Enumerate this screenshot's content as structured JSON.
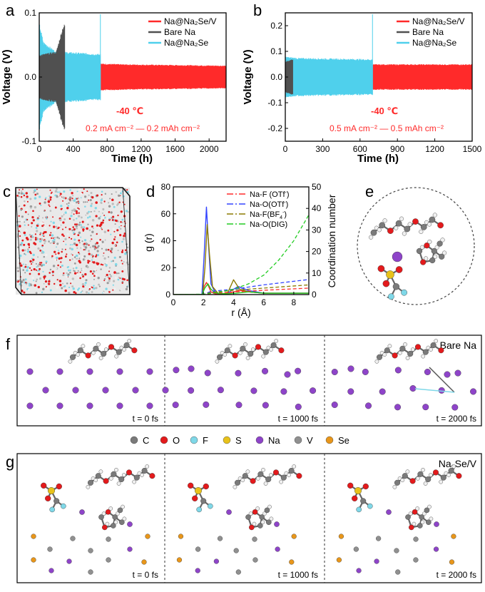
{
  "colors": {
    "red": "#ff2a2a",
    "black": "#505050",
    "cyan": "#4fd0ec",
    "blue": "#3344ff",
    "olive": "#8c7a00",
    "green": "#22cc22",
    "na": "#8e44c9",
    "o": "#e31a1c",
    "c": "#7a7a7a",
    "h": "#f0f0f0",
    "f": "#7fd8e8",
    "s": "#e8c21a",
    "v": "#909090",
    "se": "#e8961a"
  },
  "panels": {
    "a": {
      "letter": "a"
    },
    "b": {
      "letter": "b"
    },
    "c": {
      "letter": "c"
    },
    "d": {
      "letter": "d"
    },
    "e": {
      "letter": "e"
    },
    "f": {
      "letter": "f",
      "label": "Bare Na",
      "times": [
        "t = 0 fs",
        "t = 1000 fs",
        "t = 2000 fs"
      ]
    },
    "g": {
      "letter": "g",
      "label_main": "Na",
      "label_sub": "2",
      "label_tail": "Se/V",
      "times": [
        "t = 0 fs",
        "t = 1000 fs",
        "t = 2000 fs"
      ]
    }
  },
  "legend_atoms": [
    {
      "symbol": "C",
      "color": "#7a7a7a"
    },
    {
      "symbol": "O",
      "color": "#e31a1c"
    },
    {
      "symbol": "F",
      "color": "#7fd8e8"
    },
    {
      "symbol": "S",
      "color": "#e8c21a"
    },
    {
      "symbol": "Na",
      "color": "#8e44c9"
    },
    {
      "symbol": "V",
      "color": "#909090"
    },
    {
      "symbol": "Se",
      "color": "#e8961a"
    }
  ],
  "chart_data": [
    {
      "id": "a",
      "type": "line",
      "title": "",
      "xlabel": "Time (h)",
      "ylabel": "Voltage (V)",
      "xlim": [
        0,
        2200
      ],
      "ylim": [
        -0.1,
        0.1
      ],
      "xticks": [
        0,
        400,
        800,
        1200,
        1600,
        2000
      ],
      "yticks": [
        -0.1,
        0.0,
        0.1
      ],
      "ytick_labels": [
        "-0.1",
        "0.0",
        "0.1"
      ],
      "annotation_temp": "-40 ℃",
      "annotation_rate": "0.2 mA cm⁻² — 0.2 mAh cm⁻²",
      "series": [
        {
          "name": "Na@Na₂Se/V",
          "color": "#ff2a2a",
          "x_end": 2200,
          "envelope": [
            [
              0,
              0.025
            ],
            [
              500,
              0.022
            ],
            [
              1000,
              0.02
            ],
            [
              2200,
              0.018
            ]
          ]
        },
        {
          "name": "Bare Na",
          "color": "#505050",
          "x_end": 300,
          "envelope": [
            [
              0,
              0.035
            ],
            [
              200,
              0.04
            ],
            [
              280,
              0.08
            ],
            [
              300,
              0.083
            ]
          ]
        },
        {
          "name": "Na@Na₂Se",
          "color": "#4fd0ec",
          "x_end": 720,
          "envelope": [
            [
              0,
              0.085
            ],
            [
              50,
              0.055
            ],
            [
              200,
              0.04
            ],
            [
              500,
              0.038
            ],
            [
              720,
              0.036
            ]
          ]
        }
      ]
    },
    {
      "id": "b",
      "type": "line",
      "title": "",
      "xlabel": "Time (h)",
      "ylabel": "Voltage (V)",
      "xlim": [
        0,
        1500
      ],
      "ylim": [
        -0.25,
        0.25
      ],
      "xticks": [
        0,
        300,
        600,
        900,
        1200,
        1500
      ],
      "yticks": [
        -0.2,
        -0.1,
        0.0,
        0.1,
        0.2
      ],
      "ytick_labels": [
        "-0.2",
        "-0.1",
        "0.0",
        "0.1",
        "0.2"
      ],
      "annotation_temp": "-40 ℃",
      "annotation_rate": "0.5 mA cm⁻² — 0.5 mAh cm⁻²",
      "series": [
        {
          "name": "Na@Na₂Se/V",
          "color": "#ff2a2a",
          "x_end": 1500,
          "envelope": [
            [
              0,
              0.055
            ],
            [
              700,
              0.05
            ],
            [
              1500,
              0.05
            ]
          ]
        },
        {
          "name": "Bare Na",
          "color": "#505050",
          "x_end": 60,
          "envelope": [
            [
              0,
              0.06
            ],
            [
              60,
              0.07
            ]
          ]
        },
        {
          "name": "Na@Na₂Se",
          "color": "#4fd0ec",
          "x_end": 700,
          "envelope": [
            [
              0,
              0.08
            ],
            [
              100,
              0.075
            ],
            [
              700,
              0.07
            ]
          ]
        }
      ]
    },
    {
      "id": "d",
      "type": "line",
      "title": "",
      "xlabel": "r (Å)",
      "ylabel": "g (r)",
      "y2label": "Coordination number",
      "xlim": [
        0,
        9
      ],
      "ylim": [
        0,
        80
      ],
      "y2lim": [
        0,
        50
      ],
      "xticks": [
        0,
        2,
        4,
        6,
        8
      ],
      "yticks": [
        0,
        20,
        40,
        60,
        80
      ],
      "y2ticks": [
        0,
        10,
        20,
        30,
        40,
        50
      ],
      "legend": [
        {
          "main": "Na-F (OTf",
          "sup": "-",
          "tail": ")",
          "color": "#ff2a2a"
        },
        {
          "main": "Na-O(OTf",
          "sup": "-",
          "tail": ")",
          "color": "#3344ff"
        },
        {
          "main": "Na-F(BF",
          "sub": "4",
          "sup": "-",
          "tail": ")",
          "color": "#8c7a00"
        },
        {
          "main": "Na-O(DIG)",
          "sup": "",
          "tail": "",
          "color": "#22cc22"
        }
      ],
      "series": [
        {
          "name": "Na-F (OTf-) g(r)",
          "color": "#ff2a2a",
          "x": [
            0,
            1.9,
            2.05,
            2.2,
            2.35,
            2.5,
            2.8,
            3.5,
            4.0,
            4.5,
            5.0,
            6.0,
            7.0,
            9.0
          ],
          "y": [
            0,
            0,
            6,
            9,
            6,
            2,
            0.5,
            0.5,
            2,
            3,
            2,
            1,
            1,
            1
          ]
        },
        {
          "name": "Na-O(OTf-) g(r)",
          "color": "#3344ff",
          "x": [
            0,
            1.9,
            2.05,
            2.2,
            2.35,
            2.5,
            2.8,
            3.5,
            4.3,
            5.0,
            6.0,
            7.0,
            9.0
          ],
          "y": [
            0,
            0,
            30,
            65,
            35,
            8,
            1,
            0.5,
            6,
            3,
            1,
            1,
            1
          ]
        },
        {
          "name": "Na-F(BF4-) g(r)",
          "color": "#8c7a00",
          "x": [
            0,
            1.95,
            2.1,
            2.25,
            2.4,
            2.6,
            3.0,
            3.6,
            4.0,
            4.4,
            5.0,
            6.0,
            7.0,
            9.0
          ],
          "y": [
            0,
            0,
            20,
            52,
            30,
            6,
            0.5,
            1,
            11,
            4,
            2,
            1,
            1,
            1
          ]
        },
        {
          "name": "Na-O(DIG) g(r)",
          "color": "#22cc22",
          "x": [
            0,
            1.9,
            2.1,
            2.3,
            2.5,
            2.8,
            3.5,
            4.2,
            5.0,
            6.0,
            7.0,
            9.0
          ],
          "y": [
            0,
            0,
            5,
            8,
            4,
            1,
            0.5,
            1,
            2,
            1,
            1,
            1
          ]
        },
        {
          "name": "Na-F (OTf-) CN",
          "color": "#ff2a2a",
          "dashed": true,
          "axis": "y2",
          "x": [
            0,
            2,
            2.5,
            4,
            6,
            9
          ],
          "y": [
            0,
            0,
            0.5,
            1.2,
            2,
            3
          ]
        },
        {
          "name": "Na-O(OTf-) CN",
          "color": "#3344ff",
          "dashed": true,
          "axis": "y2",
          "x": [
            0,
            2,
            2.5,
            4,
            6,
            9
          ],
          "y": [
            0,
            0,
            1.5,
            2.5,
            4.5,
            7
          ]
        },
        {
          "name": "Na-F(BF4-) CN",
          "color": "#8c7a00",
          "dashed": true,
          "axis": "y2",
          "x": [
            0,
            2,
            2.5,
            4,
            6,
            9
          ],
          "y": [
            0,
            0,
            1,
            2,
            3,
            4.5
          ]
        },
        {
          "name": "Na-O(DIG) CN",
          "color": "#22cc22",
          "dashed": true,
          "axis": "y2",
          "x": [
            0,
            2,
            3,
            4,
            5,
            6,
            7,
            8,
            9
          ],
          "y": [
            0,
            0.2,
            1,
            2.5,
            5,
            9,
            16,
            25,
            37
          ]
        }
      ]
    }
  ]
}
